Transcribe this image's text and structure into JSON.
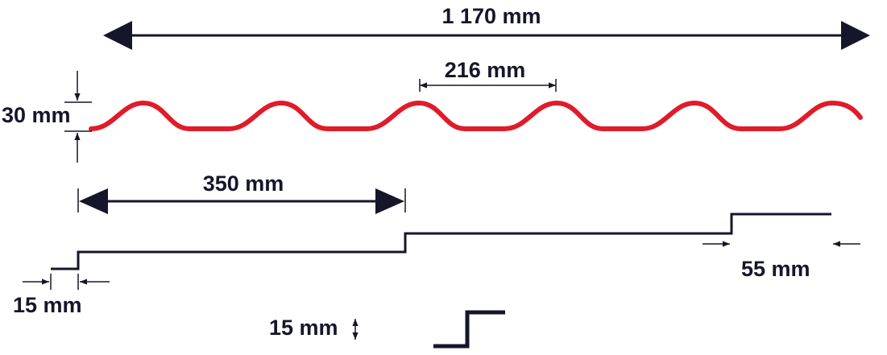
{
  "dimensions": {
    "total_width": "1 170 mm",
    "pitch": "216 mm",
    "height": "30 mm",
    "module_length": "350 mm",
    "overlap": "55 mm",
    "start_offset": "15 mm",
    "step_height": "15 mm"
  }
}
